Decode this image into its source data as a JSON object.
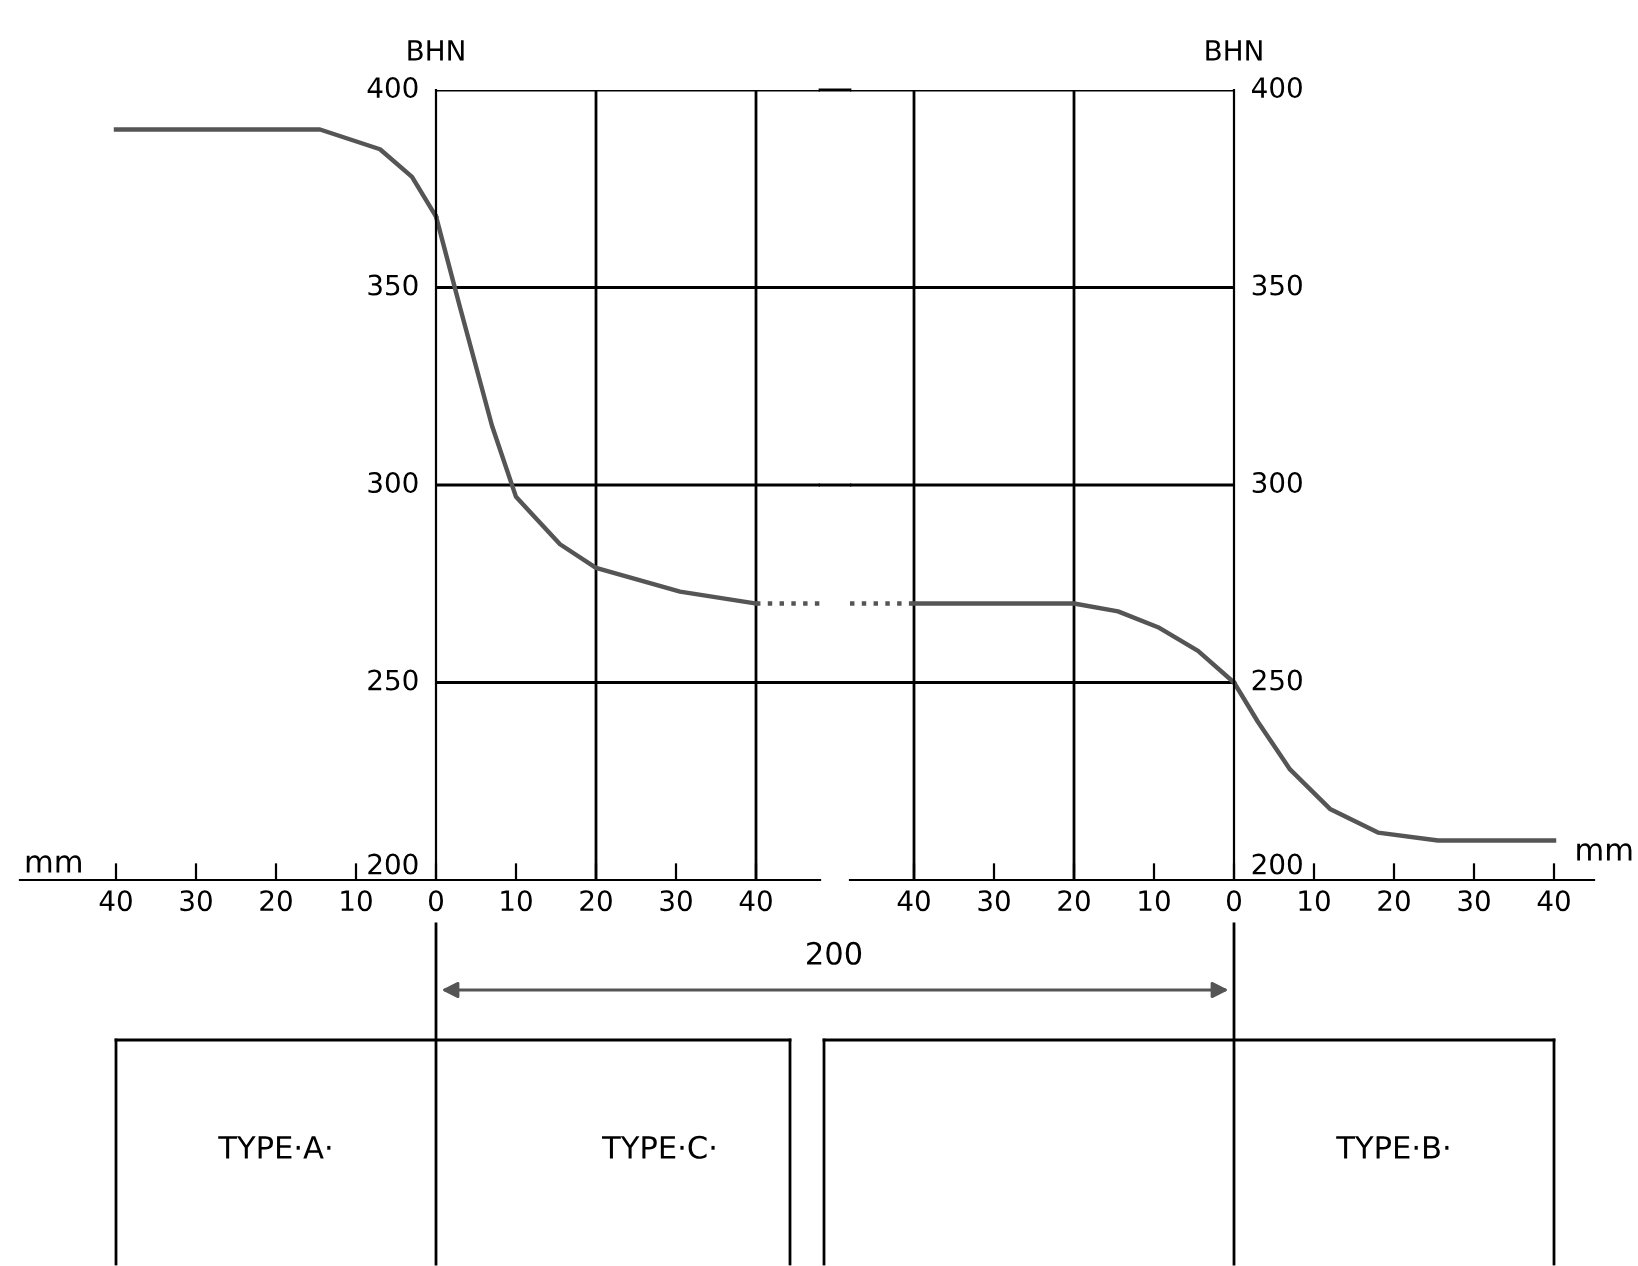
{
  "chart_data": [
    {
      "type": "line",
      "xlim": [
        52,
        0
      ],
      "xticks": [
        40,
        30,
        20,
        10
      ],
      "ylim": [
        200,
        400
      ],
      "tick_labels": "x",
      "series": [
        {
          "color": "#555555",
          "x": [
            40,
            14.5,
            7,
            3,
            0
          ],
          "values": [
            390,
            390,
            385,
            378,
            368
          ]
        }
      ],
      "annotations": [
        "mm",
        "TYPE·A·",
        "200",
        "TYPE·C·",
        "TYPE·B·",
        "mm"
      ]
    },
    {
      "type": "line",
      "xlim": [
        0,
        48
      ],
      "xticks": [
        0,
        10,
        20,
        30,
        40
      ],
      "ylim": [
        200,
        400
      ],
      "yticks": [
        200,
        250,
        300,
        350,
        400
      ],
      "ylabel": "BHN",
      "grid": "y",
      "ref_lines": [
        {
          "axis": "x",
          "value": 20,
          "color": "#000000"
        },
        {
          "axis": "x",
          "value": 40,
          "color": "#000000"
        }
      ],
      "series": [
        {
          "color": "#555555",
          "x": [
            0,
            3,
            7,
            10,
            15.5,
            20,
            30.5,
            40
          ],
          "values": [
            368,
            345,
            315,
            297,
            285,
            279,
            273,
            270
          ]
        },
        {
          "color": "#555555",
          "line_style": "dotted",
          "x": [
            40,
            48
          ],
          "values": [
            270,
            270
          ]
        }
      ]
    },
    {
      "type": "line",
      "xlim": [
        48,
        0
      ],
      "xticks": [
        40,
        30,
        20,
        10
      ],
      "ylim": [
        200,
        400
      ],
      "yticks": [
        200,
        250,
        300,
        350,
        400
      ],
      "tick_labels": "x",
      "grid": "y",
      "ref_lines": [
        {
          "axis": "x",
          "value": 40,
          "color": "#000000"
        },
        {
          "axis": "x",
          "value": 20,
          "color": "#000000"
        }
      ],
      "series": [
        {
          "color": "#555555",
          "line_style": "dotted",
          "x": [
            48,
            40
          ],
          "values": [
            270,
            270
          ]
        },
        {
          "color": "#555555",
          "x": [
            40,
            20,
            14.5,
            9.5,
            4.5,
            0
          ],
          "values": [
            270,
            270,
            268,
            264,
            258,
            250
          ]
        }
      ]
    },
    {
      "type": "line",
      "xlim": [
        0,
        45
      ],
      "xticks": [
        0,
        10,
        20,
        30,
        40
      ],
      "y2lim": [
        200,
        400
      ],
      "y2ticks": [
        200,
        250,
        300,
        350,
        400
      ],
      "y2label": "BHN",
      "series": [
        {
          "color": "#555555",
          "axis": "y2",
          "x": [
            0,
            3,
            7,
            12,
            18,
            25.5,
            40
          ],
          "values": [
            250,
            240,
            228,
            218,
            212,
            210,
            210
          ]
        }
      ]
    }
  ]
}
